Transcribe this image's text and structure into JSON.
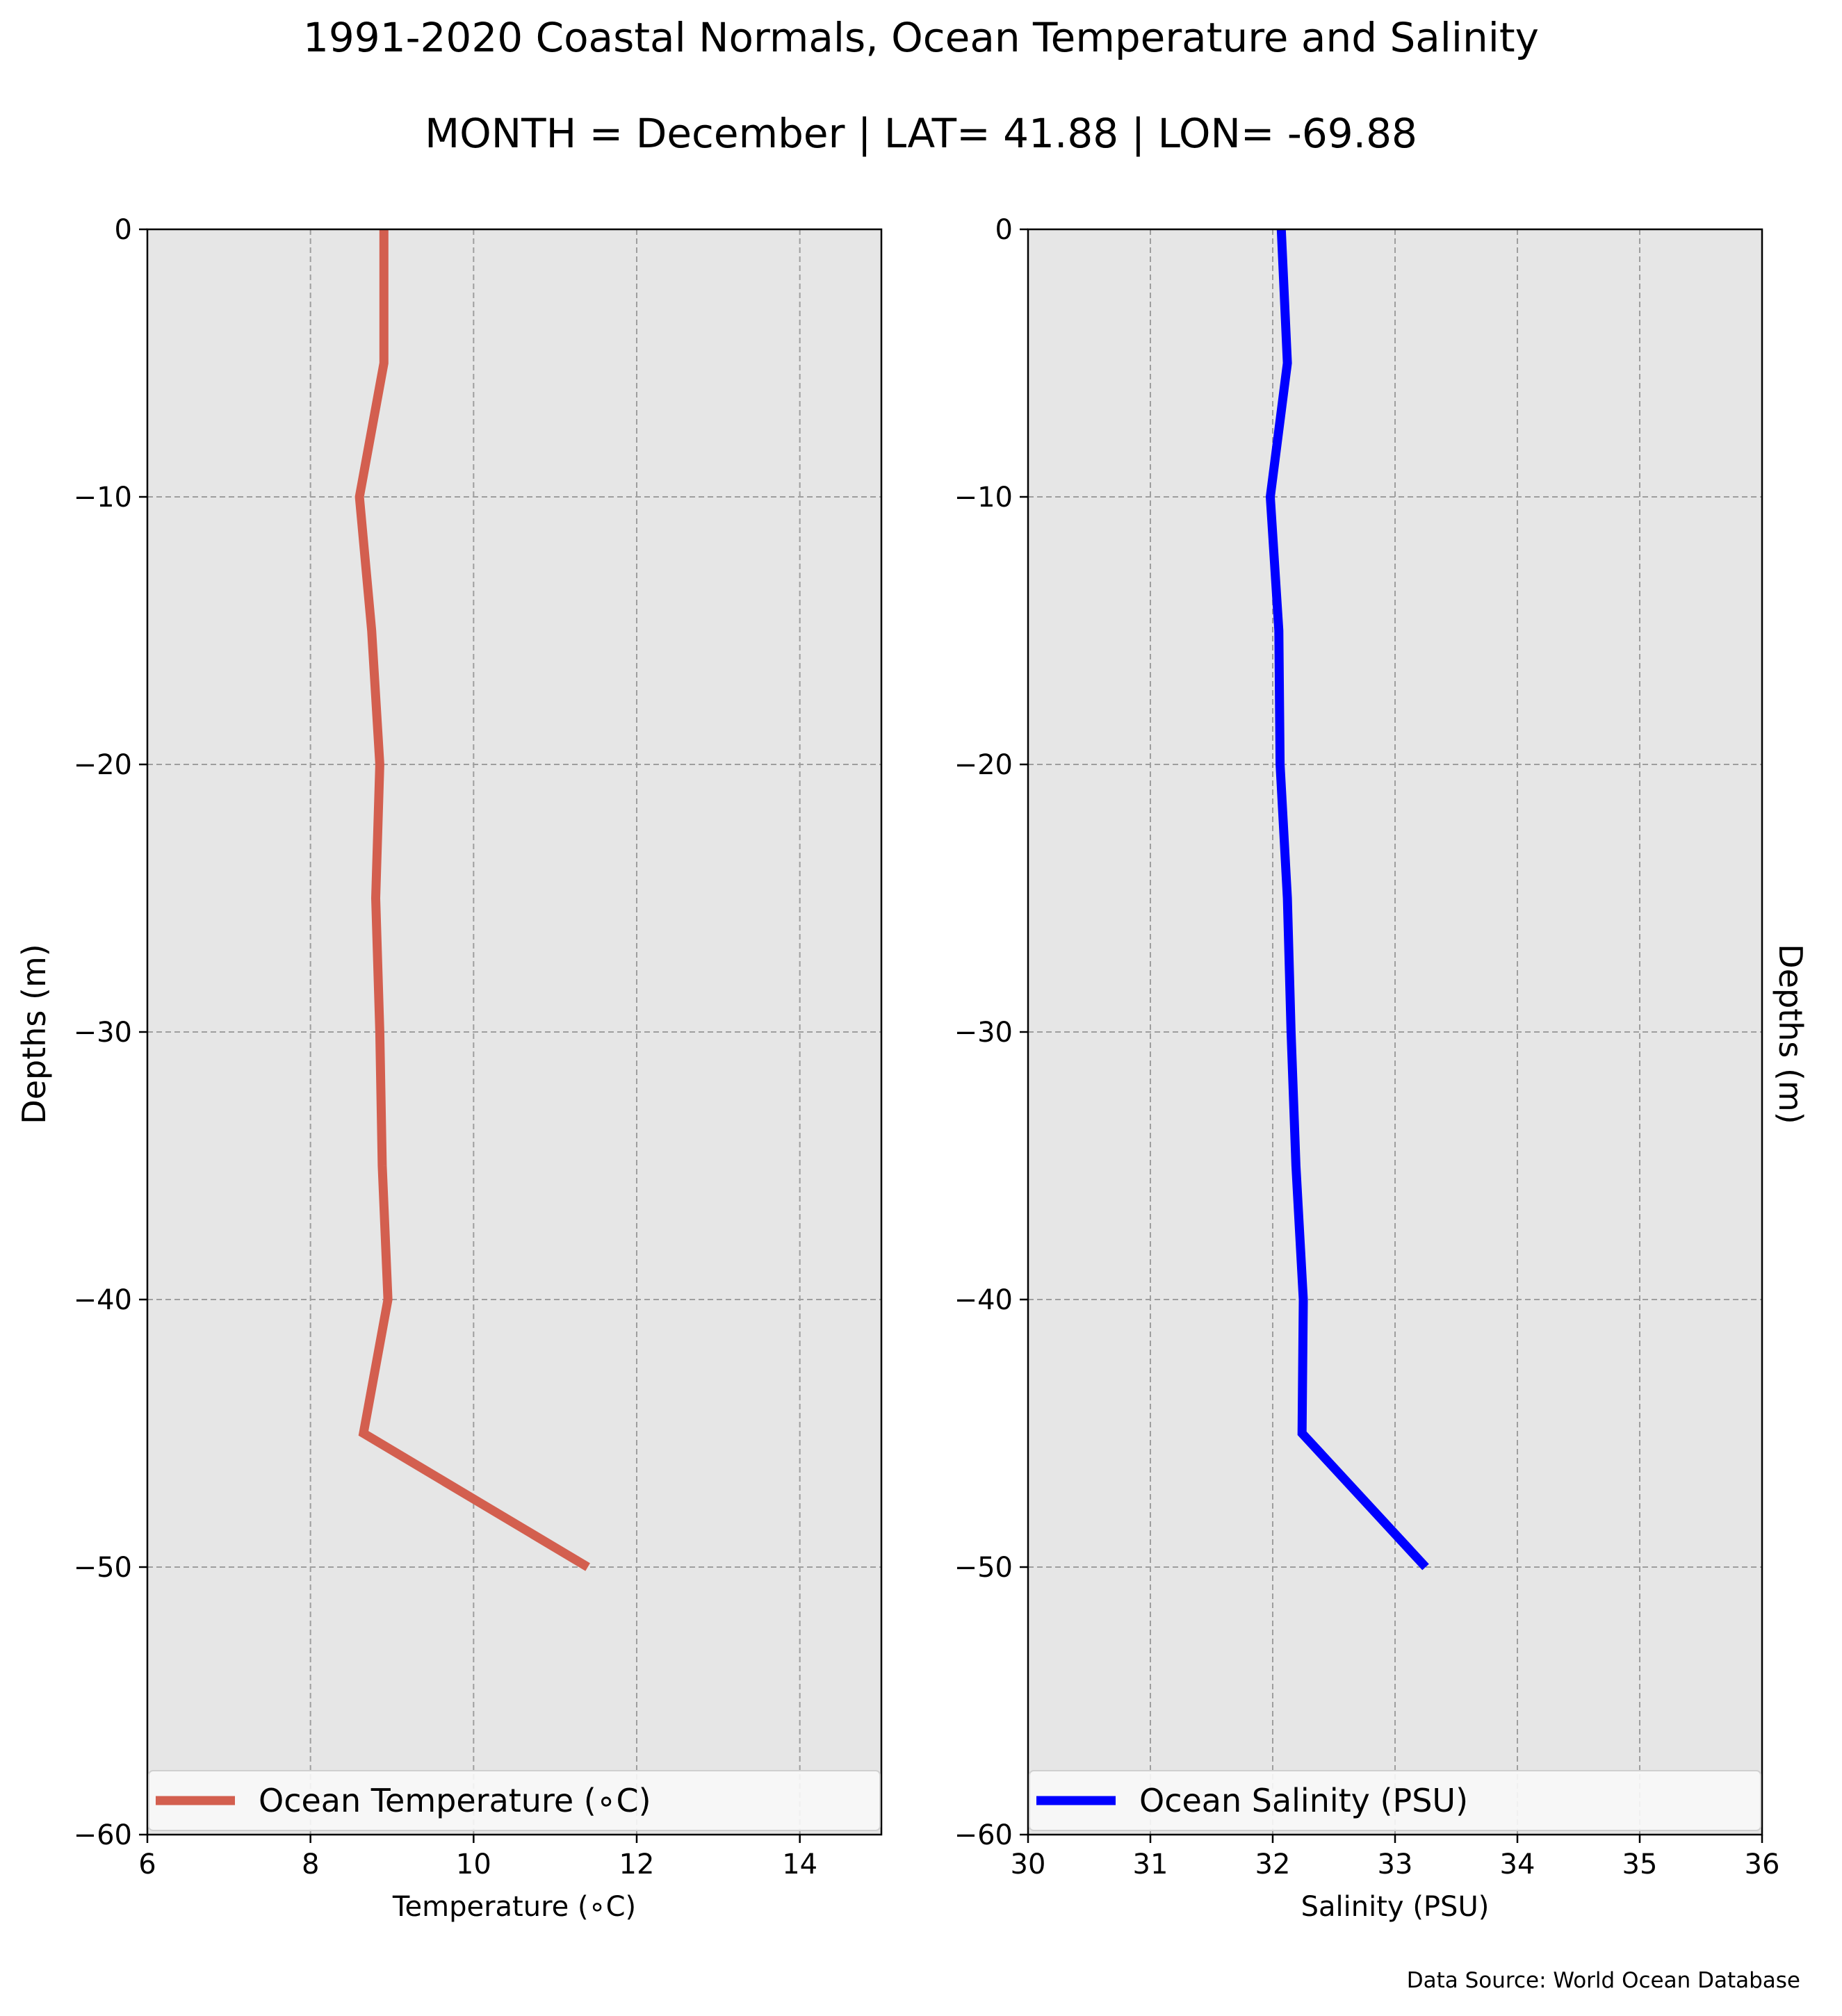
{
  "title": "1991-2020 Coastal Normals, Ocean Temperature and Salinity",
  "subtitle": "MONTH = December | LAT= 41.88 | LON= -69.88",
  "source_note": "Data Source: World Ocean Database",
  "colors": {
    "plot_bg": "#e6e6e6",
    "grid": "#9e9e9e",
    "temperature_line": "#d35f4f",
    "salinity_line": "#0000ff",
    "legend_bg": "#f8f8f8"
  },
  "chart_data": [
    {
      "type": "line",
      "xlabel": "Temperature ($^\\circ$C)",
      "xlabel_display": "Temperature (∘C)",
      "ylabel": "Depths (m)",
      "xlim": [
        6,
        15
      ],
      "ylim": [
        -60,
        0
      ],
      "xticks": [
        6,
        8,
        10,
        12,
        14
      ],
      "xtick_labels": [
        "6",
        "8",
        "10",
        "12",
        "14"
      ],
      "yticks": [
        0,
        -10,
        -20,
        -30,
        -40,
        -50,
        -60
      ],
      "ytick_labels": [
        "0",
        "−10",
        "−20",
        "−30",
        "−40",
        "−50",
        "−60"
      ],
      "grid": true,
      "legend_position": "bottom",
      "series": [
        {
          "name": "Ocean Temperature (∘C)",
          "x": [
            8.9,
            8.9,
            8.6,
            8.75,
            8.85,
            8.8,
            8.85,
            8.88,
            8.95,
            8.65,
            11.4
          ],
          "y": [
            0,
            -5,
            -10,
            -15,
            -20,
            -25,
            -30,
            -35,
            -40,
            -45,
            -50
          ]
        }
      ]
    },
    {
      "type": "line",
      "xlabel": "Salinity (PSU)",
      "ylabel": "Depths (m)",
      "xlim": [
        30,
        36
      ],
      "ylim": [
        -60,
        0
      ],
      "xticks": [
        30,
        31,
        32,
        33,
        34,
        35,
        36
      ],
      "xtick_labels": [
        "30",
        "31",
        "32",
        "33",
        "34",
        "35",
        "36"
      ],
      "yticks": [
        0,
        -10,
        -20,
        -30,
        -40,
        -50,
        -60
      ],
      "ytick_labels": [
        "0",
        "−10",
        "−20",
        "−30",
        "−40",
        "−50",
        "−60"
      ],
      "grid": true,
      "legend_position": "bottom",
      "series": [
        {
          "name": "Ocean Salinity (PSU)",
          "x": [
            32.07,
            32.12,
            31.98,
            32.05,
            32.06,
            32.12,
            32.15,
            32.19,
            32.25,
            32.24,
            33.25
          ],
          "y": [
            0,
            -5,
            -10,
            -15,
            -20,
            -25,
            -30,
            -35,
            -40,
            -45,
            -50
          ]
        }
      ]
    }
  ]
}
